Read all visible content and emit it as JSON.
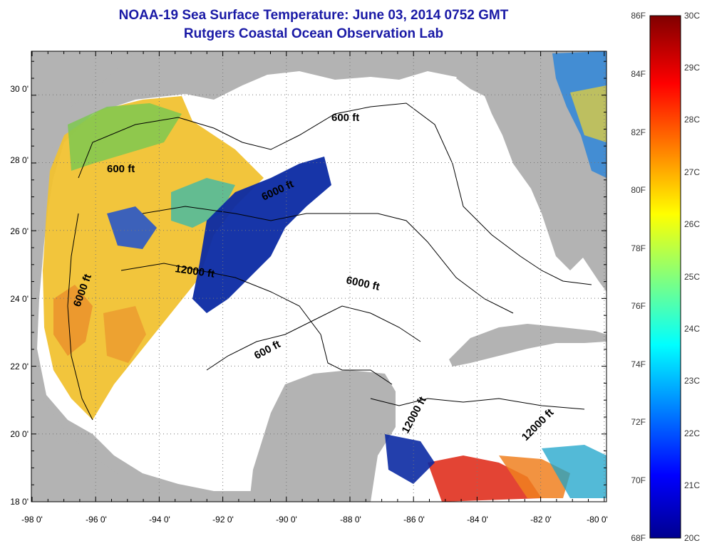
{
  "header": {
    "title": "NOAA-19 Sea Surface Temperature:  June 03, 2014 0752 GMT",
    "subtitle": "Rutgers Coastal Ocean Observation Lab"
  },
  "map": {
    "lat_ticks": [
      "18 0'",
      "20 0'",
      "22 0'",
      "24 0'",
      "26 0'",
      "28 0'",
      "30 0'"
    ],
    "lon_ticks": [
      "-98 0'",
      "-96 0'",
      "-94 0'",
      "-92 0'",
      "-90 0'",
      "-88 0'",
      "-86 0'",
      "-84 0'",
      "-82 0'",
      "-80 0'"
    ],
    "contour_labels": [
      "600 ft",
      "600 ft",
      "6000 ft",
      "12000 ft",
      "6000 ft",
      "6000 ft",
      "600 ft",
      "12000 ft",
      "12000 ft"
    ],
    "colors": {
      "land": "#b3b3b3",
      "cloud": "#ffffff",
      "warm": "#f1c232",
      "cold": "#0b2aa3"
    }
  },
  "colorbar": {
    "fahrenheit": [
      "86F",
      "84F",
      "82F",
      "80F",
      "78F",
      "76F",
      "74F",
      "72F",
      "70F",
      "68F"
    ],
    "celsius": [
      "30C",
      "29C",
      "28C",
      "27C",
      "26C",
      "25C",
      "24C",
      "23C",
      "22C",
      "21C",
      "20C"
    ]
  }
}
